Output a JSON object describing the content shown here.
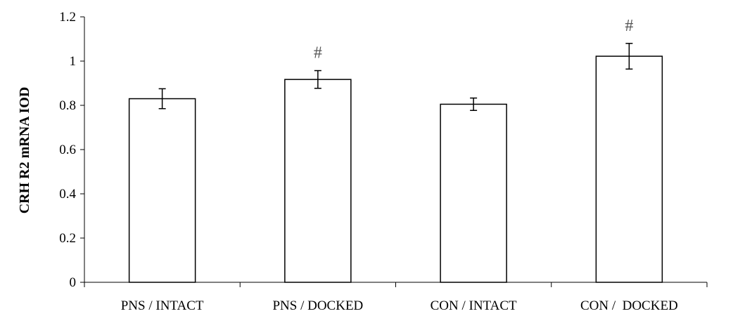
{
  "chart_data": {
    "type": "bar",
    "title": "",
    "xlabel": "",
    "ylabel": "CRH R2 mRNA IOD",
    "categories": [
      "PNS / INTACT",
      "PNS / DOCKED",
      "CON / INTACT",
      "CON /  DOCKED"
    ],
    "values": [
      0.83,
      0.917,
      0.805,
      1.022
    ],
    "errors": [
      0.045,
      0.04,
      0.028,
      0.058
    ],
    "annotations": [
      "",
      "#",
      "",
      "#"
    ],
    "ylim": [
      0,
      1.2
    ],
    "yticks": [
      "0",
      "0.2",
      "0.4",
      "0.6",
      "0.8",
      "1",
      "1.2"
    ],
    "grid": false,
    "bar_fill": "#ffffff",
    "bar_stroke": "#000000"
  }
}
